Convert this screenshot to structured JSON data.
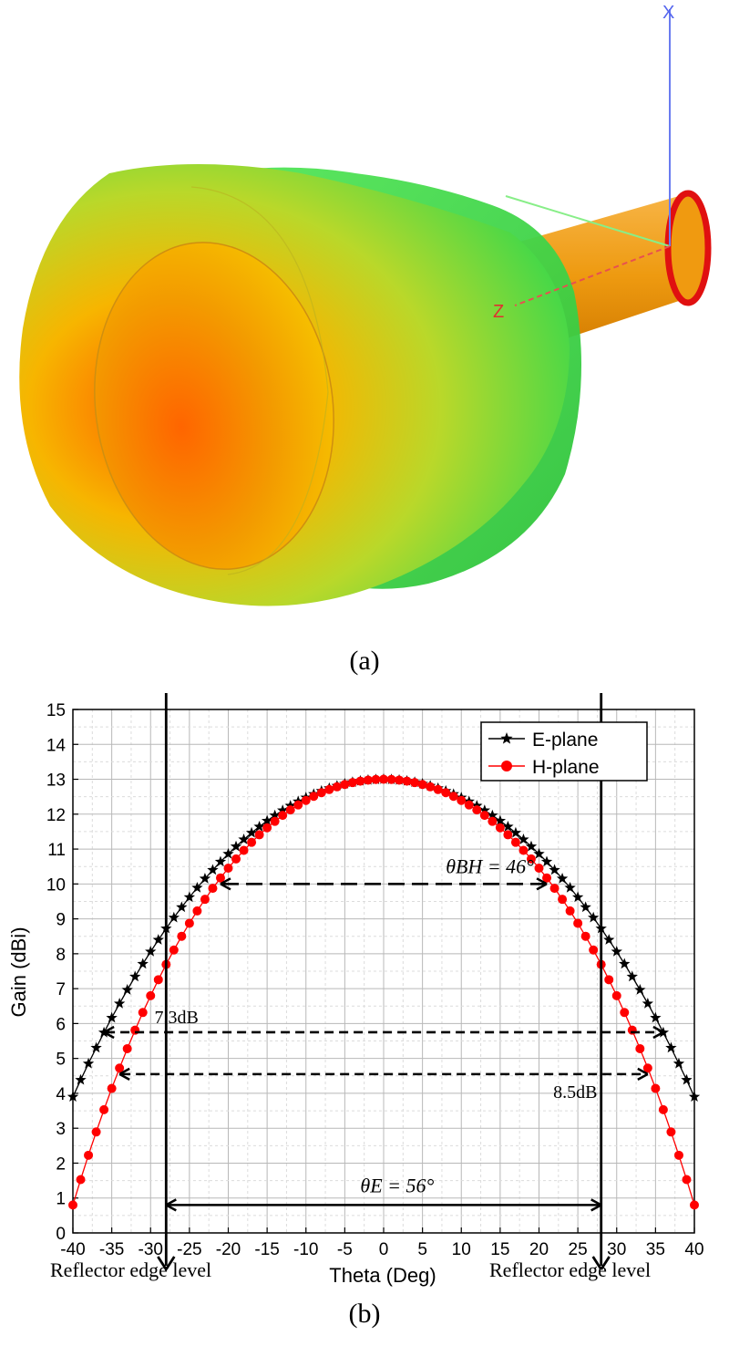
{
  "captions": {
    "a": "(a)",
    "b": "(b)"
  },
  "pattern3d": {
    "axis_labels": {
      "x": "X",
      "z": "Z"
    },
    "colors": {
      "max": "#ff4a00",
      "mid": "#f5c800",
      "low": "#4fe13a",
      "feed": "#f0a000",
      "rim": "#e01010"
    }
  },
  "chart_data": {
    "type": "line",
    "title": "",
    "xlabel": "Theta (Deg)",
    "ylabel": "Gain (dBi)",
    "xlim": [
      -40,
      40
    ],
    "ylim": [
      0,
      15
    ],
    "xticks": [
      -40,
      -35,
      -30,
      -25,
      -20,
      -15,
      -10,
      -5,
      0,
      5,
      10,
      15,
      20,
      25,
      30,
      35,
      40
    ],
    "yticks": [
      0,
      1,
      2,
      3,
      4,
      5,
      6,
      7,
      8,
      9,
      10,
      11,
      12,
      13,
      14,
      15
    ],
    "grid": true,
    "legend_position": "top-right",
    "series": [
      {
        "name": "E-plane",
        "color": "#000000",
        "marker": "star",
        "peak": 13.0,
        "edge_value": 3.9
      },
      {
        "name": "H-plane",
        "color": "#ff0000",
        "marker": "circle",
        "peak": 13.0,
        "edge_value": 0.8
      }
    ],
    "x_step": 1,
    "annotations": {
      "theta_bh": {
        "label": "θBH = 46°",
        "y": 10,
        "x_from": -21,
        "x_to": 21
      },
      "theta_e": {
        "label": "θE = 56°",
        "y": 0.8,
        "x_from": -28,
        "x_to": 28
      },
      "edge_e": {
        "label": "7.3dB",
        "y": 5.75,
        "x_from": -36,
        "x_to": 36
      },
      "edge_h": {
        "label": "8.5dB",
        "y": 4.55,
        "x_from": -34,
        "x_to": 34
      },
      "reflector_lines": {
        "label": "Reflector edge level",
        "x": [
          -28,
          28
        ]
      }
    }
  }
}
